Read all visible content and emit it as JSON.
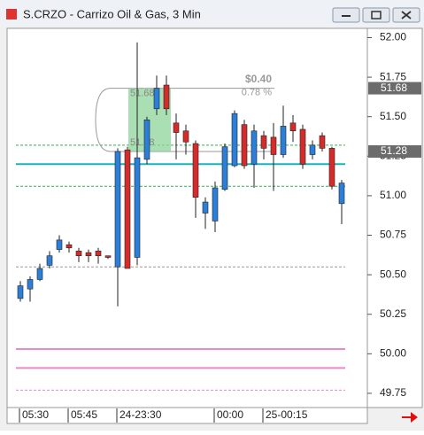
{
  "window_title": "S.CRZO - Carrizo Oil & Gas, 3 Min",
  "chart_data": {
    "type": "candlestick",
    "categories": [
      "05:30",
      null,
      null,
      null,
      null,
      "05:45",
      null,
      null,
      null,
      null,
      "24-23:30",
      null,
      null,
      null,
      null,
      null,
      null,
      null,
      null,
      null,
      "00:00",
      null,
      null,
      null,
      null,
      "25-00:15",
      null,
      null,
      null,
      null,
      null,
      null,
      null,
      null
    ],
    "open": [
      50.35,
      50.41,
      50.47,
      50.56,
      50.66,
      50.69,
      50.65,
      50.64,
      50.65,
      50.62,
      50.55,
      51.29,
      50.61,
      51.23,
      51.55,
      51.7,
      51.46,
      51.41,
      51.33,
      50.89,
      50.84,
      51.04,
      51.19,
      51.45,
      51.2,
      51.38,
      51.37,
      51.26,
      51.46,
      51.42,
      51.26,
      51.38,
      51.3,
      50.95
    ],
    "high": [
      50.46,
      50.49,
      50.57,
      50.65,
      50.75,
      50.71,
      50.67,
      50.66,
      50.67,
      50.62,
      51.3,
      51.31,
      51.97,
      51.5,
      51.76,
      51.76,
      51.52,
      51.45,
      51.35,
      50.99,
      51.09,
      51.33,
      51.54,
      51.48,
      51.45,
      51.41,
      51.46,
      51.57,
      51.51,
      51.45,
      51.35,
      51.4,
      51.31,
      51.1
    ],
    "low": [
      50.33,
      50.33,
      50.46,
      50.54,
      50.64,
      50.64,
      50.58,
      50.58,
      50.57,
      50.6,
      50.3,
      50.54,
      50.56,
      51.2,
      51.51,
      51.51,
      51.23,
      51.26,
      50.86,
      50.79,
      50.77,
      51.03,
      51.18,
      51.17,
      51.05,
      51.23,
      51.03,
      51.24,
      51.34,
      51.17,
      51.23,
      51.28,
      51.04,
      50.82
    ],
    "close": [
      50.43,
      50.47,
      50.54,
      50.62,
      50.72,
      50.67,
      50.62,
      50.62,
      50.62,
      50.61,
      51.28,
      50.54,
      51.24,
      51.48,
      51.68,
      51.55,
      51.4,
      51.34,
      50.99,
      50.96,
      51.05,
      51.31,
      51.52,
      51.19,
      51.41,
      51.3,
      51.26,
      51.44,
      51.41,
      51.2,
      51.32,
      51.3,
      51.06,
      51.08
    ],
    "up_color": "#2b7fd8",
    "down_color": "#d62b2b",
    "ylim": [
      49.66,
      52.07
    ],
    "yticks": [
      {
        "value": 49.75,
        "label": "49.75"
      },
      {
        "value": 50,
        "label": "50.00"
      },
      {
        "value": 50.25,
        "label": "50.25"
      },
      {
        "value": 50.5,
        "label": "50.50"
      },
      {
        "value": 50.75,
        "label": "50.75"
      },
      {
        "value": 51,
        "label": "51.00"
      },
      {
        "value": 51.25,
        "label": "51.25"
      },
      {
        "value": 51.5,
        "label": "51.50"
      },
      {
        "value": 51.75,
        "label": "51.75"
      },
      {
        "value": 52,
        "label": "52.00"
      }
    ],
    "levels": [
      {
        "value": 51.32,
        "color": "#2fb24a",
        "dash": true
      },
      {
        "value": 51.06,
        "color": "#2fb24a",
        "dash": true
      },
      {
        "value": 51.2,
        "color": "#19b3b8",
        "dash": false
      },
      {
        "value": 50.55,
        "color": "#999999",
        "dash": true
      },
      {
        "value": 50.03,
        "color": "#e88ac4",
        "dash": false
      },
      {
        "value": 49.91,
        "color": "#e88ac4",
        "dash": false
      },
      {
        "value": 49.77,
        "color": "#e88ac4",
        "dash": true
      }
    ],
    "range_box": {
      "high": 51.68,
      "low": 51.28,
      "change": "$0.40",
      "percent": "0.78 %"
    },
    "price_markers": [
      51.68,
      51.28
    ]
  }
}
